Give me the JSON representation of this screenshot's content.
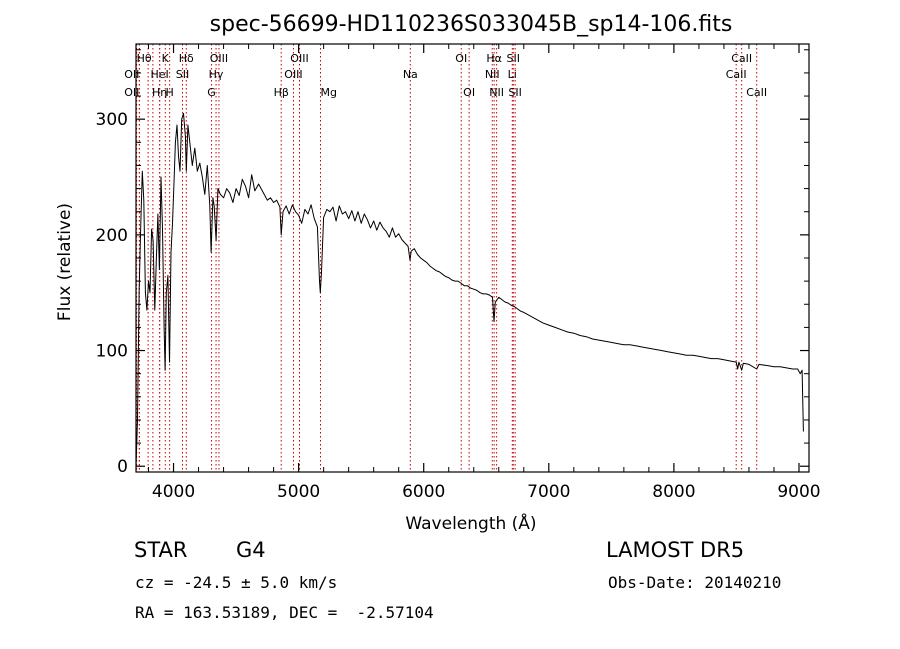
{
  "chart_data": {
    "type": "line",
    "title": "spec-56699-HD110236S033045B_sp14-106.fits",
    "xlabel": "Wavelength (Å)",
    "ylabel": "Flux (relative)",
    "xlim": [
      3700,
      9080
    ],
    "ylim": [
      -5,
      365
    ],
    "xticks": [
      4000,
      5000,
      6000,
      7000,
      8000,
      9000
    ],
    "yticks": [
      0,
      100,
      200,
      300
    ],
    "grid": false,
    "series": [
      {
        "values": [
          [
            3700,
            0
          ],
          [
            3712,
            40
          ],
          [
            3725,
            150
          ],
          [
            3738,
            210
          ],
          [
            3750,
            255
          ],
          [
            3762,
            230
          ],
          [
            3775,
            150
          ],
          [
            3787,
            135
          ],
          [
            3800,
            160
          ],
          [
            3812,
            150
          ],
          [
            3825,
            205
          ],
          [
            3837,
            195
          ],
          [
            3850,
            135
          ],
          [
            3862,
            178
          ],
          [
            3875,
            218
          ],
          [
            3887,
            170
          ],
          [
            3900,
            250
          ],
          [
            3912,
            205
          ],
          [
            3925,
            120
          ],
          [
            3933,
            83
          ],
          [
            3942,
            150
          ],
          [
            3955,
            165
          ],
          [
            3968,
            90
          ],
          [
            3980,
            185
          ],
          [
            3992,
            210
          ],
          [
            4005,
            250
          ],
          [
            4015,
            280
          ],
          [
            4028,
            295
          ],
          [
            4040,
            268
          ],
          [
            4052,
            255
          ],
          [
            4065,
            300
          ],
          [
            4080,
            305
          ],
          [
            4095,
            285
          ],
          [
            4102,
            255
          ],
          [
            4115,
            295
          ],
          [
            4130,
            280
          ],
          [
            4150,
            260
          ],
          [
            4170,
            275
          ],
          [
            4190,
            255
          ],
          [
            4210,
            262
          ],
          [
            4230,
            250
          ],
          [
            4250,
            235
          ],
          [
            4270,
            260
          ],
          [
            4290,
            225
          ],
          [
            4300,
            185
          ],
          [
            4315,
            232
          ],
          [
            4325,
            225
          ],
          [
            4340,
            195
          ],
          [
            4355,
            240
          ],
          [
            4375,
            235
          ],
          [
            4400,
            232
          ],
          [
            4425,
            240
          ],
          [
            4450,
            236
          ],
          [
            4475,
            228
          ],
          [
            4500,
            240
          ],
          [
            4525,
            234
          ],
          [
            4550,
            248
          ],
          [
            4575,
            242
          ],
          [
            4600,
            232
          ],
          [
            4625,
            252
          ],
          [
            4650,
            238
          ],
          [
            4680,
            244
          ],
          [
            4700,
            240
          ],
          [
            4720,
            236
          ],
          [
            4750,
            230
          ],
          [
            4775,
            232
          ],
          [
            4800,
            228
          ],
          [
            4825,
            230
          ],
          [
            4850,
            224
          ],
          [
            4861,
            200
          ],
          [
            4875,
            220
          ],
          [
            4900,
            225
          ],
          [
            4925,
            218
          ],
          [
            4950,
            226
          ],
          [
            4975,
            220
          ],
          [
            5000,
            217
          ],
          [
            5025,
            210
          ],
          [
            5050,
            222
          ],
          [
            5075,
            218
          ],
          [
            5100,
            226
          ],
          [
            5125,
            214
          ],
          [
            5150,
            207
          ],
          [
            5167,
            160
          ],
          [
            5173,
            150
          ],
          [
            5183,
            168
          ],
          [
            5200,
            215
          ],
          [
            5225,
            222
          ],
          [
            5250,
            220
          ],
          [
            5275,
            224
          ],
          [
            5300,
            212
          ],
          [
            5325,
            225
          ],
          [
            5350,
            218
          ],
          [
            5375,
            220
          ],
          [
            5400,
            214
          ],
          [
            5425,
            221
          ],
          [
            5450,
            212
          ],
          [
            5475,
            220
          ],
          [
            5500,
            210
          ],
          [
            5525,
            218
          ],
          [
            5550,
            213
          ],
          [
            5575,
            206
          ],
          [
            5600,
            212
          ],
          [
            5625,
            204
          ],
          [
            5650,
            211
          ],
          [
            5675,
            206
          ],
          [
            5700,
            203
          ],
          [
            5725,
            198
          ],
          [
            5750,
            206
          ],
          [
            5775,
            198
          ],
          [
            5800,
            201
          ],
          [
            5825,
            196
          ],
          [
            5850,
            193
          ],
          [
            5875,
            190
          ],
          [
            5890,
            178
          ],
          [
            5900,
            186
          ],
          [
            5925,
            188
          ],
          [
            5950,
            183
          ],
          [
            5975,
            180
          ],
          [
            6000,
            178
          ],
          [
            6025,
            176
          ],
          [
            6050,
            173
          ],
          [
            6075,
            171
          ],
          [
            6100,
            169
          ],
          [
            6125,
            168
          ],
          [
            6150,
            166
          ],
          [
            6175,
            164
          ],
          [
            6200,
            163
          ],
          [
            6225,
            161
          ],
          [
            6250,
            160
          ],
          [
            6275,
            160
          ],
          [
            6300,
            158
          ],
          [
            6325,
            156
          ],
          [
            6350,
            156
          ],
          [
            6375,
            154
          ],
          [
            6400,
            153
          ],
          [
            6425,
            152
          ],
          [
            6450,
            150
          ],
          [
            6475,
            149
          ],
          [
            6500,
            149
          ],
          [
            6525,
            148
          ],
          [
            6550,
            146
          ],
          [
            6562,
            125
          ],
          [
            6572,
            142
          ],
          [
            6600,
            146
          ],
          [
            6625,
            144
          ],
          [
            6650,
            142
          ],
          [
            6675,
            141
          ],
          [
            6700,
            139
          ],
          [
            6725,
            138
          ],
          [
            6750,
            136
          ],
          [
            6775,
            134
          ],
          [
            6800,
            133
          ],
          [
            6850,
            130
          ],
          [
            6900,
            127
          ],
          [
            6950,
            124
          ],
          [
            7000,
            122
          ],
          [
            7050,
            120
          ],
          [
            7100,
            118
          ],
          [
            7150,
            116
          ],
          [
            7200,
            115
          ],
          [
            7250,
            113
          ],
          [
            7300,
            112
          ],
          [
            7350,
            110
          ],
          [
            7400,
            109
          ],
          [
            7450,
            108
          ],
          [
            7500,
            107
          ],
          [
            7550,
            106
          ],
          [
            7600,
            105
          ],
          [
            7650,
            105
          ],
          [
            7700,
            104
          ],
          [
            7750,
            103
          ],
          [
            7800,
            102
          ],
          [
            7850,
            101
          ],
          [
            7900,
            100
          ],
          [
            7950,
            99
          ],
          [
            8000,
            98
          ],
          [
            8050,
            97
          ],
          [
            8100,
            96
          ],
          [
            8150,
            96
          ],
          [
            8200,
            95
          ],
          [
            8250,
            94
          ],
          [
            8300,
            93
          ],
          [
            8350,
            93
          ],
          [
            8400,
            92
          ],
          [
            8450,
            91
          ],
          [
            8498,
            90
          ],
          [
            8510,
            84
          ],
          [
            8520,
            90
          ],
          [
            8542,
            83
          ],
          [
            8555,
            89
          ],
          [
            8600,
            88
          ],
          [
            8662,
            84
          ],
          [
            8680,
            88
          ],
          [
            8750,
            87
          ],
          [
            8800,
            86
          ],
          [
            8850,
            86
          ],
          [
            8900,
            85
          ],
          [
            8950,
            84
          ],
          [
            8990,
            84
          ],
          [
            9010,
            80
          ],
          [
            9025,
            83
          ],
          [
            9035,
            30
          ]
        ]
      }
    ],
    "lines": [
      {
        "w": 3705,
        "label": "Hθ",
        "row": 1,
        "anchor": "start"
      },
      {
        "w": 3727,
        "label": "OII",
        "row": 2,
        "anchor": "end"
      },
      {
        "w": 3727,
        "label": "OII",
        "row": 3,
        "anchor": "end"
      },
      {
        "w": 3797,
        "label": "",
        "row": 0
      },
      {
        "w": 3835,
        "label": "",
        "row": 0
      },
      {
        "w": 3889,
        "label": "HeI",
        "row": 2,
        "anchor": "middle"
      },
      {
        "w": 3889,
        "label": "Hη",
        "row": 3,
        "anchor": "middle"
      },
      {
        "w": 3934,
        "label": "K",
        "row": 1,
        "anchor": "middle"
      },
      {
        "w": 3969,
        "label": "H",
        "row": 3,
        "anchor": "middle"
      },
      {
        "w": 4072,
        "label": "SII",
        "row": 2,
        "anchor": "middle"
      },
      {
        "w": 4102,
        "label": "Hδ",
        "row": 1,
        "anchor": "middle"
      },
      {
        "w": 4340,
        "label": "Hγ",
        "row": 2,
        "anchor": "middle"
      },
      {
        "w": 4304,
        "label": "G",
        "row": 3,
        "anchor": "middle"
      },
      {
        "w": 4363,
        "label": "OIII",
        "row": 1,
        "anchor": "middle"
      },
      {
        "w": 4861,
        "label": "Hβ",
        "row": 3,
        "anchor": "middle"
      },
      {
        "w": 4959,
        "label": "OIII",
        "row": 2,
        "anchor": "middle"
      },
      {
        "w": 5007,
        "label": "OIII",
        "row": 1,
        "anchor": "middle"
      },
      {
        "w": 5175,
        "label": "Mg",
        "row": 3,
        "anchor": "start"
      },
      {
        "w": 5893,
        "label": "Na",
        "row": 2,
        "anchor": "middle"
      },
      {
        "w": 6300,
        "label": "OI",
        "row": 1,
        "anchor": "middle"
      },
      {
        "w": 6363,
        "label": "OI",
        "row": 3,
        "anchor": "middle"
      },
      {
        "w": 6548,
        "label": "NII",
        "row": 2,
        "anchor": "middle"
      },
      {
        "w": 6563,
        "label": "Hα",
        "row": 1,
        "anchor": "middle"
      },
      {
        "w": 6583,
        "label": "NII",
        "row": 3,
        "anchor": "middle"
      },
      {
        "w": 6708,
        "label": "Li",
        "row": 2,
        "anchor": "middle"
      },
      {
        "w": 6716,
        "label": "SII",
        "row": 1,
        "anchor": "middle"
      },
      {
        "w": 6731,
        "label": "SII",
        "row": 3,
        "anchor": "middle"
      },
      {
        "w": 8498,
        "label": "CaII",
        "row": 2,
        "anchor": "middle"
      },
      {
        "w": 8542,
        "label": "CaII",
        "row": 1,
        "anchor": "middle"
      },
      {
        "w": 8662,
        "label": "CaII",
        "row": 3,
        "anchor": "middle"
      }
    ]
  },
  "info": {
    "obj_class": "STAR",
    "obj_subclass": "G4",
    "survey": "LAMOST DR5",
    "cz": "cz = -24.5 ± 5.0 km/s",
    "obs_date": "Obs-Date: 20140210",
    "radec": "RA = 163.53189, DEC =  -2.57104"
  },
  "colors": {
    "spectrum": "#000000",
    "line_marker": "#cc0000",
    "axes": "#000000",
    "background": "#ffffff"
  }
}
